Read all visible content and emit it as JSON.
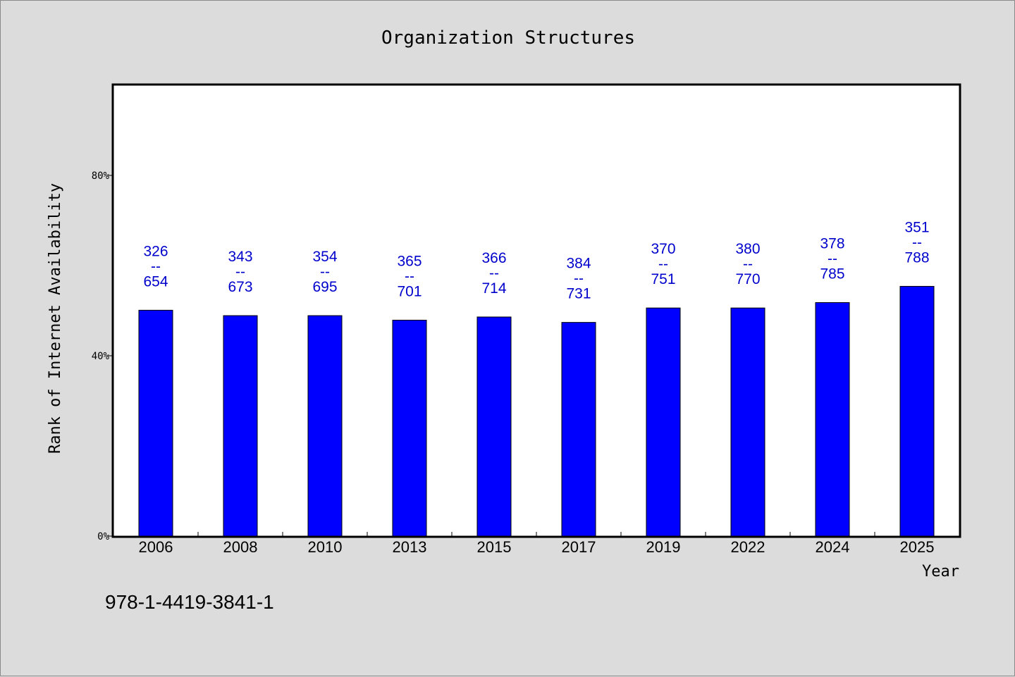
{
  "chart_data": {
    "type": "bar",
    "title": "Organization Structures",
    "xlabel": "Year",
    "ylabel": "Rank of Internet Availability",
    "categories": [
      "2006",
      "2008",
      "2010",
      "2013",
      "2015",
      "2017",
      "2019",
      "2022",
      "2024",
      "2025"
    ],
    "values": [
      50.1,
      48.9,
      48.9,
      47.9,
      48.6,
      47.4,
      50.6,
      50.6,
      51.8,
      55.4
    ],
    "value_unit": "%",
    "ylim": [
      0,
      100
    ],
    "yticks": [
      {
        "value": 0,
        "label": "0%"
      },
      {
        "value": 40,
        "label": "40%"
      },
      {
        "value": 80,
        "label": "80%"
      }
    ],
    "data_labels": [
      {
        "top": "326",
        "sep": "--",
        "bottom": "654"
      },
      {
        "top": "343",
        "sep": "--",
        "bottom": "673"
      },
      {
        "top": "354",
        "sep": "--",
        "bottom": "695"
      },
      {
        "top": "365",
        "sep": "--",
        "bottom": "701"
      },
      {
        "top": "366",
        "sep": "--",
        "bottom": "714"
      },
      {
        "top": "384",
        "sep": "--",
        "bottom": "731"
      },
      {
        "top": "370",
        "sep": "--",
        "bottom": "751"
      },
      {
        "top": "380",
        "sep": "--",
        "bottom": "770"
      },
      {
        "top": "378",
        "sep": "--",
        "bottom": "785"
      },
      {
        "top": "351",
        "sep": "--",
        "bottom": "788"
      }
    ],
    "grid": false,
    "bar_color": "#0000ff",
    "label_color": "#0000cc"
  },
  "footer": {
    "isbn": "978-1-4419-3841-1"
  }
}
